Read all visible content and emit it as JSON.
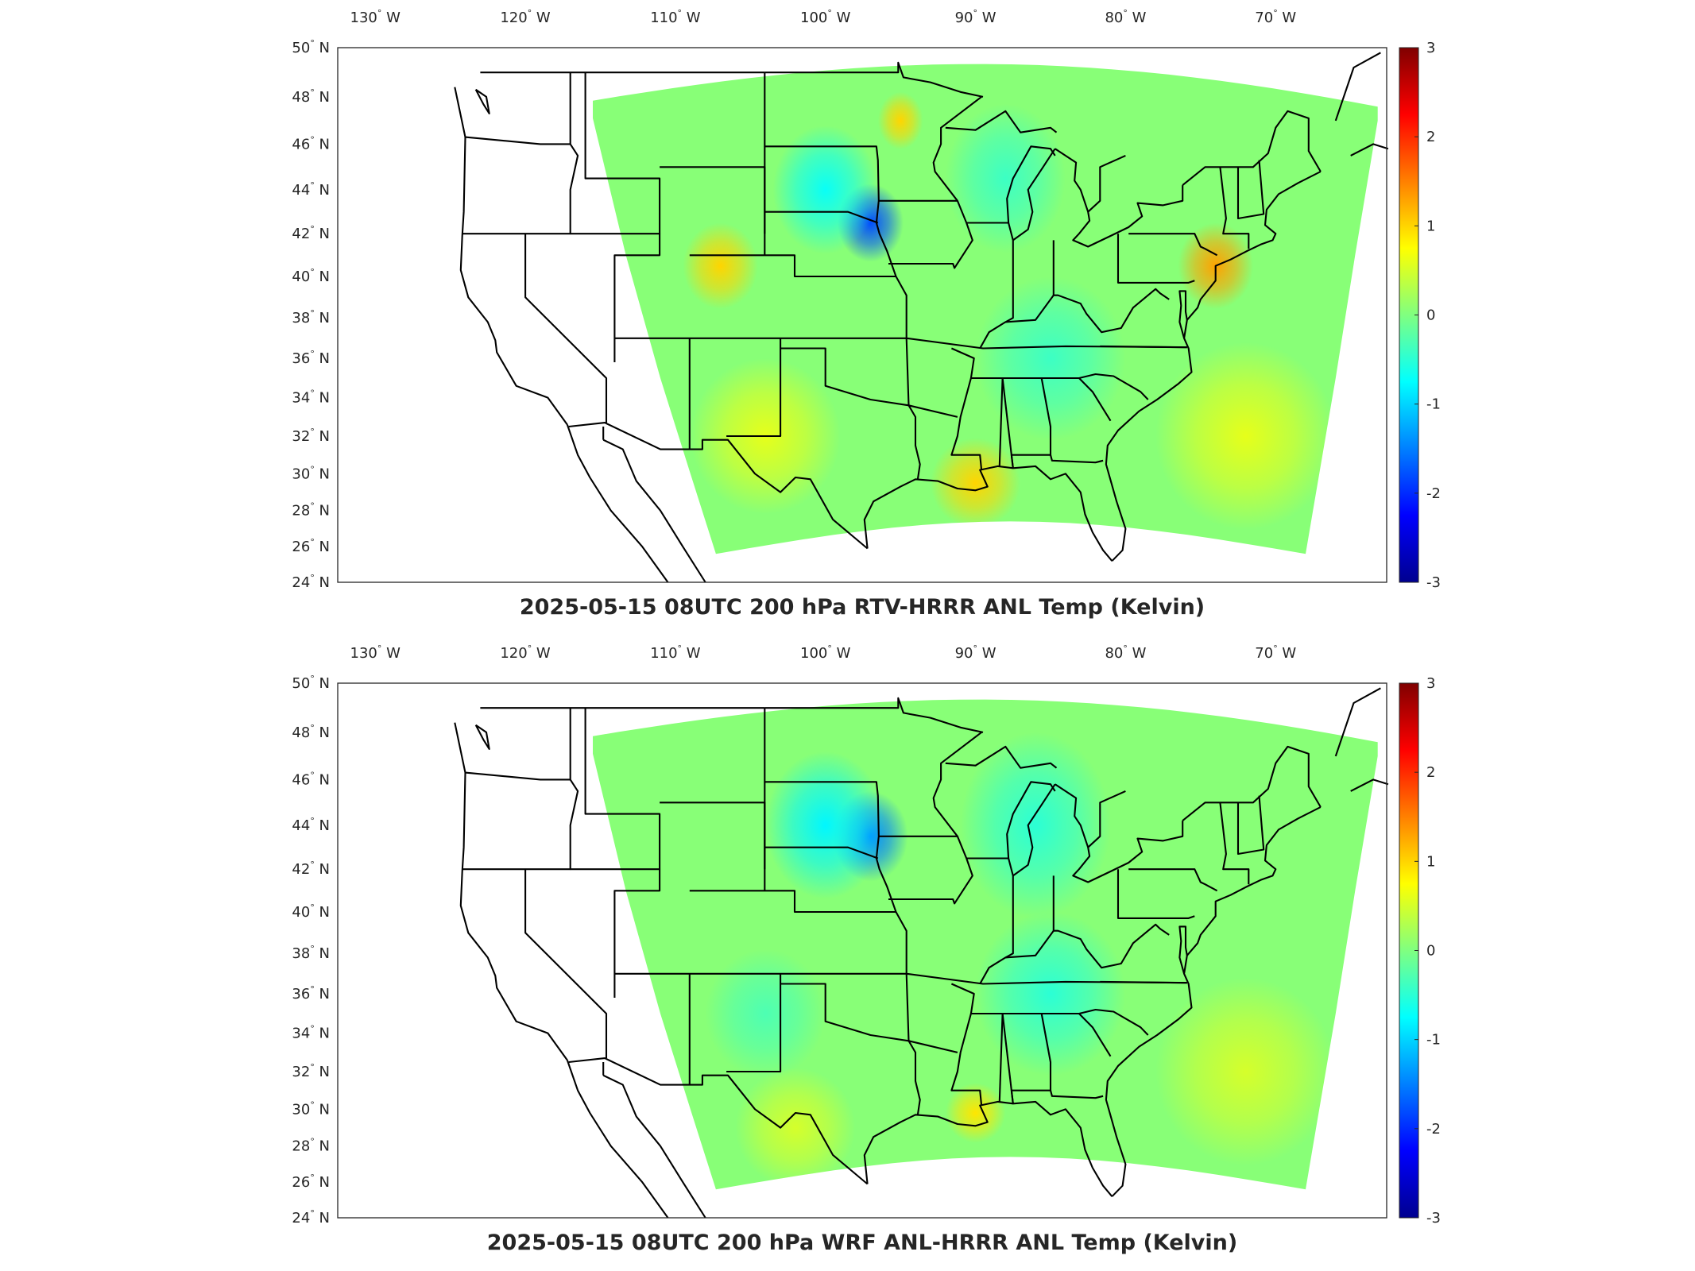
{
  "colors": {
    "colormap": [
      "#00008f",
      "#0000ff",
      "#0080ff",
      "#00ffff",
      "#80ff80",
      "#ffff00",
      "#ff8000",
      "#ff0000",
      "#800000"
    ],
    "field_base": "#8fe88a",
    "field_warm": "#f2ef5a",
    "field_cool": "#55d3e6",
    "field_cold": "#2a6fe8",
    "state_lines": "#000000"
  },
  "map": {
    "lon_ticks": [
      {
        "value": -130,
        "deg": "130",
        "hem": "W"
      },
      {
        "value": -120,
        "deg": "120",
        "hem": "W"
      },
      {
        "value": -110,
        "deg": "110",
        "hem": "W"
      },
      {
        "value": -100,
        "deg": "100",
        "hem": "W"
      },
      {
        "value": -90,
        "deg": "90",
        "hem": "W"
      },
      {
        "value": -80,
        "deg": "80",
        "hem": "W"
      },
      {
        "value": -70,
        "deg": "70",
        "hem": "W"
      }
    ],
    "lat_ticks": [
      {
        "value": 50,
        "deg": "50",
        "hem": "N"
      },
      {
        "value": 48,
        "deg": "48",
        "hem": "N"
      },
      {
        "value": 46,
        "deg": "46",
        "hem": "N"
      },
      {
        "value": 44,
        "deg": "44",
        "hem": "N"
      },
      {
        "value": 42,
        "deg": "42",
        "hem": "N"
      },
      {
        "value": 40,
        "deg": "40",
        "hem": "N"
      },
      {
        "value": 38,
        "deg": "38",
        "hem": "N"
      },
      {
        "value": 36,
        "deg": "36",
        "hem": "N"
      },
      {
        "value": 34,
        "deg": "34",
        "hem": "N"
      },
      {
        "value": 32,
        "deg": "32",
        "hem": "N"
      },
      {
        "value": 30,
        "deg": "30",
        "hem": "N"
      },
      {
        "value": 28,
        "deg": "28",
        "hem": "N"
      },
      {
        "value": 26,
        "deg": "26",
        "hem": "N"
      },
      {
        "value": 24,
        "deg": "24",
        "hem": "N"
      }
    ],
    "colorbar": {
      "min": -3,
      "max": 3,
      "ticks": [
        "3",
        "2",
        "1",
        "0",
        "-1",
        "-2",
        "-3"
      ]
    }
  },
  "panels": [
    {
      "title": "2025-05-15 08UTC 200 hPa RTV-HRRR ANL Temp (Kelvin)",
      "anomalies": [
        {
          "lon": -97,
          "lat": 42.5,
          "value": -1.8,
          "radius": 2.2
        },
        {
          "lon": -100,
          "lat": 44,
          "value": -0.7,
          "radius": 3.5
        },
        {
          "lon": -88,
          "lat": 44.5,
          "value": -0.4,
          "radius": 4
        },
        {
          "lon": -74,
          "lat": 40.5,
          "value": 1.3,
          "radius": 2.5
        },
        {
          "lon": -107,
          "lat": 40.5,
          "value": 1.0,
          "radius": 2.5
        },
        {
          "lon": -90,
          "lat": 29.5,
          "value": 1.0,
          "radius": 3
        },
        {
          "lon": -104,
          "lat": 32,
          "value": 0.6,
          "radius": 5
        },
        {
          "lon": -95,
          "lat": 47,
          "value": 1.0,
          "radius": 1.5
        },
        {
          "lon": -85,
          "lat": 36,
          "value": -0.4,
          "radius": 5
        },
        {
          "lon": -72,
          "lat": 32,
          "value": 0.6,
          "radius": 6
        }
      ]
    },
    {
      "title": "2025-05-15 08UTC 200 hPa WRF ANL-HRRR ANL Temp (Kelvin)",
      "anomalies": [
        {
          "lon": -97,
          "lat": 43.5,
          "value": -1.5,
          "radius": 2.5
        },
        {
          "lon": -100,
          "lat": 44,
          "value": -0.8,
          "radius": 4
        },
        {
          "lon": -86,
          "lat": 44,
          "value": -0.5,
          "radius": 5
        },
        {
          "lon": -85,
          "lat": 36,
          "value": -0.5,
          "radius": 5
        },
        {
          "lon": -104,
          "lat": 35,
          "value": -0.3,
          "radius": 4
        },
        {
          "lon": -90,
          "lat": 29.8,
          "value": 0.9,
          "radius": 2
        },
        {
          "lon": -72,
          "lat": 32,
          "value": 0.5,
          "radius": 6
        },
        {
          "lon": -102,
          "lat": 29,
          "value": 0.5,
          "radius": 4
        }
      ]
    }
  ]
}
